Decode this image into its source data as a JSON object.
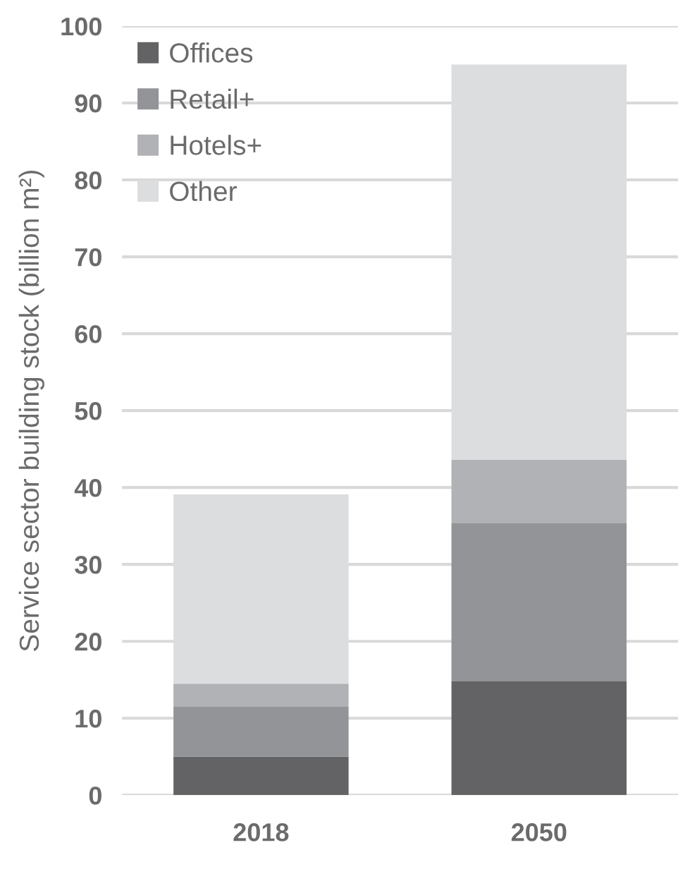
{
  "chart_data": {
    "type": "bar",
    "stacked": true,
    "ylabel": "Service sector building stock (billion m²)",
    "categories": [
      "2018",
      "2050"
    ],
    "series": [
      {
        "name": "Offices",
        "color": "#636365",
        "values": [
          5,
          14.8
        ]
      },
      {
        "name": "Retail+",
        "color": "#939497",
        "values": [
          6.5,
          20.6
        ]
      },
      {
        "name": "Hotels+",
        "color": "#b1b2b5",
        "values": [
          3,
          8.2
        ]
      },
      {
        "name": "Other",
        "color": "#dcdddf",
        "values": [
          24.6,
          51.4
        ]
      }
    ],
    "ylim": [
      0,
      100
    ],
    "yticks": [
      0,
      10,
      20,
      30,
      40,
      50,
      60,
      70,
      80,
      90,
      100
    ],
    "grid": "y",
    "legend": "top left"
  }
}
